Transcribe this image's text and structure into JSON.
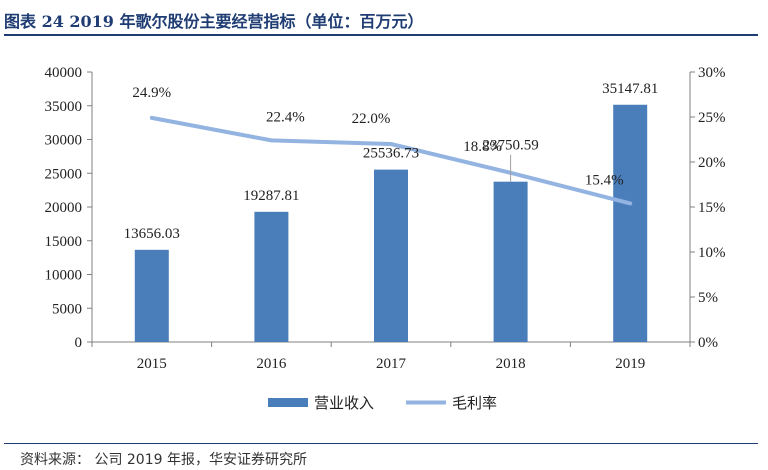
{
  "header": {
    "title": "图表 24 2019 年歌尔股份主要经营指标（单位：百万元）"
  },
  "footer": {
    "source": "资料来源：  公司 2019 年报，华安证券研究所"
  },
  "colors": {
    "bar": "#4a7ebb",
    "line": "#93b3e1",
    "axis": "#808080",
    "title": "#1f3c73"
  },
  "chart_data": {
    "type": "bar",
    "categories": [
      "2015",
      "2016",
      "2017",
      "2018",
      "2019"
    ],
    "series": [
      {
        "name": "营业收入",
        "type": "bar",
        "axis": "left",
        "values": [
          13656.03,
          19287.81,
          25536.73,
          23750.59,
          35147.81
        ],
        "labels": [
          "13656.03",
          "19287.81",
          "25536.73",
          "23750.59",
          "35147.81"
        ]
      },
      {
        "name": "毛利率",
        "type": "line",
        "axis": "right",
        "values": [
          24.9,
          22.4,
          22.0,
          18.8,
          15.4
        ],
        "labels": [
          "24.9%",
          "22.4%",
          "22.0%",
          "18.8%",
          "15.4%"
        ]
      }
    ],
    "y_left": {
      "min": 0,
      "max": 40000,
      "ticks": [
        "0",
        "5000",
        "10000",
        "15000",
        "20000",
        "25000",
        "30000",
        "35000",
        "40000"
      ]
    },
    "y_right": {
      "min": 0,
      "max": 30,
      "ticks": [
        "0%",
        "5%",
        "10%",
        "15%",
        "20%",
        "25%",
        "30%"
      ]
    },
    "grid": false,
    "legend_position": "bottom"
  }
}
